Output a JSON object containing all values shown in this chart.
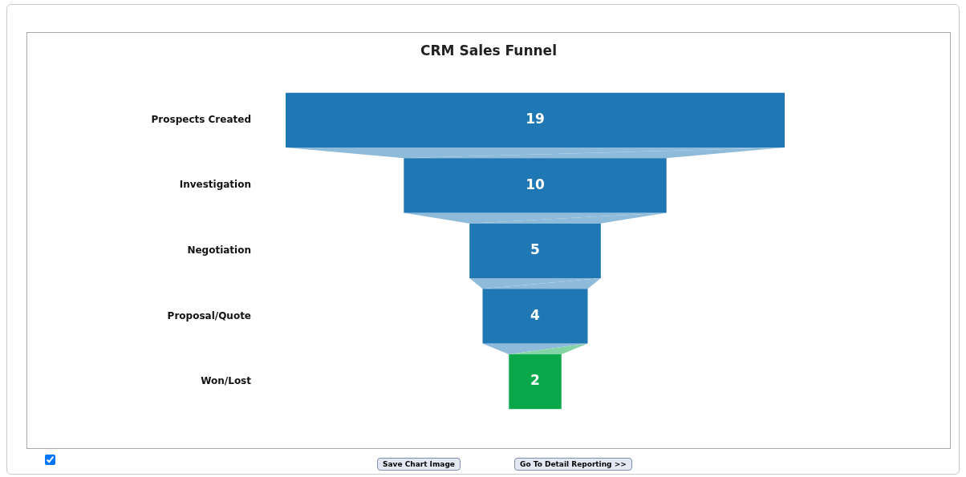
{
  "chart_data": {
    "type": "other",
    "title": "CRM Sales Funnel",
    "categories": [
      "Prospects Created",
      "Investigation",
      "Negotiation",
      "Proposal/Quote",
      "Won/Lost"
    ],
    "values": [
      19,
      10,
      5,
      4,
      2
    ],
    "colors": [
      "#1f77b4",
      "#1f77b4",
      "#1f77b4",
      "#1f77b4",
      "#0aa84a"
    ],
    "data_labels": true,
    "annotations": [
      "Save Chart Image",
      "Go To Detail Reporting >>"
    ]
  }
}
